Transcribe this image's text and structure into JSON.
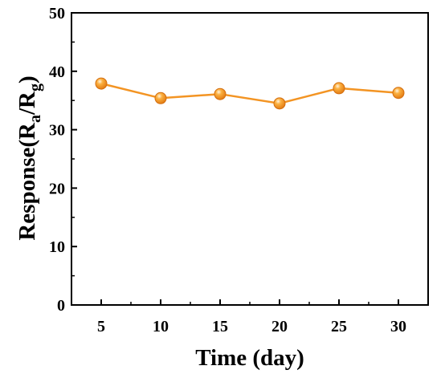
{
  "chart_data": {
    "type": "line",
    "x": [
      5,
      10,
      15,
      20,
      25,
      30
    ],
    "series": [
      {
        "values": [
          37.9,
          35.4,
          36.1,
          34.5,
          37.1,
          36.3
        ],
        "color": "#F39423"
      }
    ],
    "xlabel": "Time (day)",
    "ylabel": {
      "base": "Response(R",
      "sub_a": "a",
      "mid": "/R",
      "sub_g": "g",
      "end": ")"
    },
    "xlim": [
      2.5,
      32.5
    ],
    "ylim": [
      0,
      50
    ],
    "xticks": [
      "5",
      "10",
      "15",
      "20",
      "25",
      "30"
    ],
    "yticks": [
      "0",
      "10",
      "20",
      "30",
      "40",
      "50"
    ],
    "grid": false,
    "marker": "circle"
  }
}
